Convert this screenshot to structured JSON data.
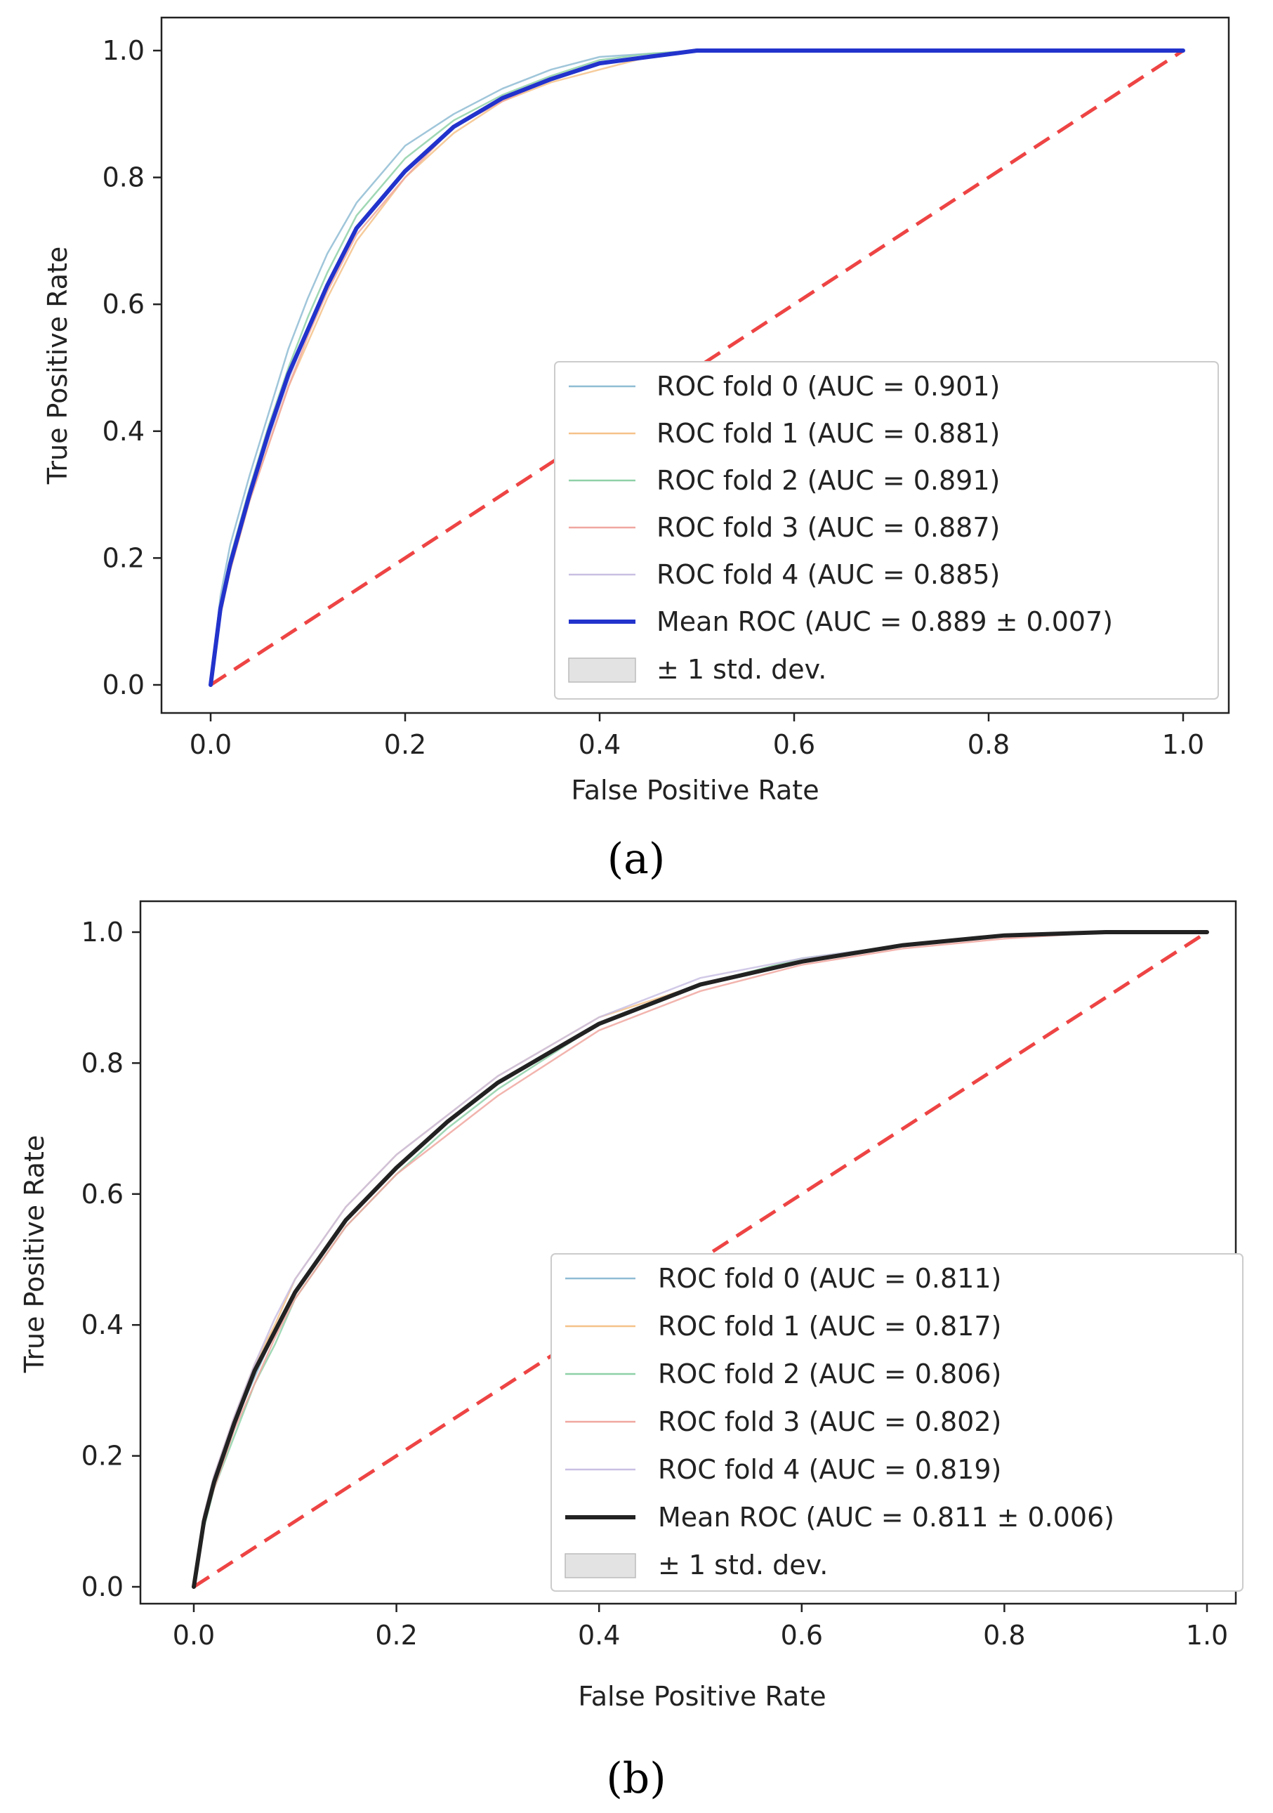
{
  "chart_data": [
    {
      "type": "line",
      "panel_label": "(a)",
      "xlabel": "False Positive Rate",
      "ylabel": "True Positive Rate",
      "xlim": [
        0.0,
        1.0
      ],
      "ylim": [
        0.0,
        1.0
      ],
      "xticks": [
        "0.0",
        "0.2",
        "0.4",
        "0.6",
        "0.8",
        "1.0"
      ],
      "yticks": [
        "0.0",
        "0.2",
        "0.4",
        "0.6",
        "0.8",
        "1.0"
      ],
      "grid": false,
      "legend_position": "lower-right",
      "mean_color": "#2233cc",
      "chance_color": "#ee4444",
      "series": [
        {
          "name": "ROC fold 0 (AUC = 0.901)",
          "color": "#8fbcd4",
          "x": [
            0,
            0.01,
            0.02,
            0.04,
            0.06,
            0.08,
            0.1,
            0.12,
            0.15,
            0.2,
            0.25,
            0.3,
            0.35,
            0.4,
            0.45,
            0.5,
            0.6,
            0.8,
            1.0
          ],
          "y": [
            0,
            0.14,
            0.22,
            0.33,
            0.43,
            0.53,
            0.61,
            0.68,
            0.76,
            0.85,
            0.9,
            0.94,
            0.97,
            0.99,
            0.995,
            1.0,
            1.0,
            1.0,
            1.0
          ]
        },
        {
          "name": "ROC fold 1 (AUC = 0.881)",
          "color": "#f5c28a",
          "x": [
            0,
            0.01,
            0.02,
            0.04,
            0.06,
            0.08,
            0.1,
            0.12,
            0.15,
            0.2,
            0.25,
            0.3,
            0.35,
            0.4,
            0.45,
            0.5,
            0.6,
            0.8,
            1.0
          ],
          "y": [
            0,
            0.11,
            0.18,
            0.29,
            0.38,
            0.47,
            0.54,
            0.61,
            0.7,
            0.8,
            0.87,
            0.92,
            0.95,
            0.97,
            0.99,
            1.0,
            1.0,
            1.0,
            1.0
          ]
        },
        {
          "name": "ROC fold 2 (AUC = 0.891)",
          "color": "#8fd1a8",
          "x": [
            0,
            0.01,
            0.02,
            0.04,
            0.06,
            0.08,
            0.1,
            0.12,
            0.15,
            0.2,
            0.25,
            0.3,
            0.35,
            0.4,
            0.45,
            0.5,
            0.6,
            0.8,
            1.0
          ],
          "y": [
            0,
            0.13,
            0.2,
            0.31,
            0.41,
            0.5,
            0.58,
            0.65,
            0.74,
            0.83,
            0.89,
            0.93,
            0.96,
            0.985,
            0.995,
            1.0,
            1.0,
            1.0,
            1.0
          ]
        },
        {
          "name": "ROC fold 3 (AUC = 0.887)",
          "color": "#f0a7a0",
          "x": [
            0,
            0.01,
            0.02,
            0.04,
            0.06,
            0.08,
            0.1,
            0.12,
            0.15,
            0.2,
            0.25,
            0.3,
            0.35,
            0.4,
            0.45,
            0.5,
            0.6,
            0.8,
            1.0
          ],
          "y": [
            0,
            0.11,
            0.18,
            0.29,
            0.38,
            0.47,
            0.55,
            0.62,
            0.71,
            0.8,
            0.88,
            0.92,
            0.955,
            0.98,
            0.99,
            1.0,
            1.0,
            1.0,
            1.0
          ]
        },
        {
          "name": "ROC fold 4 (AUC = 0.885)",
          "color": "#c9bfe3",
          "x": [
            0,
            0.01,
            0.02,
            0.04,
            0.06,
            0.08,
            0.1,
            0.12,
            0.15,
            0.2,
            0.25,
            0.3,
            0.35,
            0.4,
            0.45,
            0.5,
            0.6,
            0.8,
            1.0
          ],
          "y": [
            0,
            0.12,
            0.19,
            0.3,
            0.39,
            0.48,
            0.56,
            0.63,
            0.72,
            0.81,
            0.88,
            0.925,
            0.955,
            0.98,
            0.99,
            1.0,
            1.0,
            1.0,
            1.0
          ]
        },
        {
          "name": "Mean ROC (AUC = 0.889 ± 0.007)",
          "color": "#2233cc",
          "x": [
            0,
            0.01,
            0.02,
            0.04,
            0.06,
            0.08,
            0.1,
            0.12,
            0.15,
            0.2,
            0.25,
            0.3,
            0.35,
            0.4,
            0.45,
            0.5,
            0.6,
            0.8,
            1.0
          ],
          "y": [
            0,
            0.12,
            0.19,
            0.3,
            0.4,
            0.49,
            0.56,
            0.63,
            0.72,
            0.81,
            0.88,
            0.925,
            0.955,
            0.98,
            0.99,
            1.0,
            1.0,
            1.0,
            1.0
          ]
        }
      ],
      "std_band_label": "± 1 std. dev."
    },
    {
      "type": "line",
      "panel_label": "(b)",
      "xlabel": "False Positive Rate",
      "ylabel": "True Positive Rate",
      "xlim": [
        0.0,
        1.0
      ],
      "ylim": [
        0.0,
        1.0
      ],
      "xticks": [
        "0.0",
        "0.2",
        "0.4",
        "0.6",
        "0.8",
        "1.0"
      ],
      "yticks": [
        "0.0",
        "0.2",
        "0.4",
        "0.6",
        "0.8",
        "1.0"
      ],
      "grid": false,
      "legend_position": "lower-right",
      "mean_color": "#222222",
      "chance_color": "#ee4444",
      "series": [
        {
          "name": "ROC fold 0 (AUC = 0.811)",
          "color": "#8fbcd4",
          "x": [
            0,
            0.01,
            0.02,
            0.04,
            0.06,
            0.08,
            0.1,
            0.15,
            0.2,
            0.25,
            0.3,
            0.4,
            0.5,
            0.6,
            0.7,
            0.8,
            0.9,
            1.0
          ],
          "y": [
            0,
            0.1,
            0.16,
            0.25,
            0.32,
            0.39,
            0.45,
            0.56,
            0.64,
            0.71,
            0.77,
            0.86,
            0.92,
            0.955,
            0.98,
            0.995,
            1.0,
            1.0
          ]
        },
        {
          "name": "ROC fold 1 (AUC = 0.817)",
          "color": "#f5c28a",
          "x": [
            0,
            0.01,
            0.02,
            0.04,
            0.06,
            0.08,
            0.1,
            0.15,
            0.2,
            0.25,
            0.3,
            0.4,
            0.5,
            0.6,
            0.7,
            0.8,
            0.9,
            1.0
          ],
          "y": [
            0,
            0.11,
            0.17,
            0.26,
            0.34,
            0.4,
            0.47,
            0.58,
            0.66,
            0.72,
            0.78,
            0.87,
            0.92,
            0.955,
            0.98,
            0.995,
            1.0,
            1.0
          ]
        },
        {
          "name": "ROC fold 2 (AUC = 0.806)",
          "color": "#8fd1a8",
          "x": [
            0,
            0.01,
            0.02,
            0.04,
            0.06,
            0.08,
            0.1,
            0.15,
            0.2,
            0.25,
            0.3,
            0.4,
            0.5,
            0.6,
            0.7,
            0.8,
            0.9,
            1.0
          ],
          "y": [
            0,
            0.09,
            0.15,
            0.23,
            0.31,
            0.37,
            0.44,
            0.55,
            0.63,
            0.7,
            0.76,
            0.86,
            0.92,
            0.96,
            0.98,
            0.995,
            1.0,
            1.0
          ]
        },
        {
          "name": "ROC fold 3 (AUC = 0.802)",
          "color": "#f0a7a0",
          "x": [
            0,
            0.01,
            0.02,
            0.04,
            0.06,
            0.08,
            0.1,
            0.15,
            0.2,
            0.25,
            0.3,
            0.4,
            0.5,
            0.6,
            0.7,
            0.8,
            0.9,
            1.0
          ],
          "y": [
            0,
            0.1,
            0.15,
            0.24,
            0.31,
            0.38,
            0.44,
            0.55,
            0.63,
            0.69,
            0.75,
            0.85,
            0.91,
            0.95,
            0.975,
            0.99,
            1.0,
            1.0
          ]
        },
        {
          "name": "ROC fold 4 (AUC = 0.819)",
          "color": "#c9bfe3",
          "x": [
            0,
            0.01,
            0.02,
            0.04,
            0.06,
            0.08,
            0.1,
            0.15,
            0.2,
            0.25,
            0.3,
            0.4,
            0.5,
            0.6,
            0.7,
            0.8,
            0.9,
            1.0
          ],
          "y": [
            0,
            0.11,
            0.17,
            0.26,
            0.34,
            0.41,
            0.47,
            0.58,
            0.66,
            0.72,
            0.78,
            0.87,
            0.93,
            0.96,
            0.98,
            0.995,
            1.0,
            1.0
          ]
        },
        {
          "name": "Mean ROC (AUC = 0.811 ± 0.006)",
          "color": "#222222",
          "x": [
            0,
            0.01,
            0.02,
            0.04,
            0.06,
            0.08,
            0.1,
            0.15,
            0.2,
            0.25,
            0.3,
            0.4,
            0.5,
            0.6,
            0.7,
            0.8,
            0.9,
            1.0
          ],
          "y": [
            0,
            0.1,
            0.16,
            0.25,
            0.33,
            0.39,
            0.45,
            0.56,
            0.64,
            0.71,
            0.77,
            0.86,
            0.92,
            0.955,
            0.98,
            0.995,
            1.0,
            1.0
          ]
        }
      ],
      "std_band_label": "± 1 std. dev."
    }
  ]
}
